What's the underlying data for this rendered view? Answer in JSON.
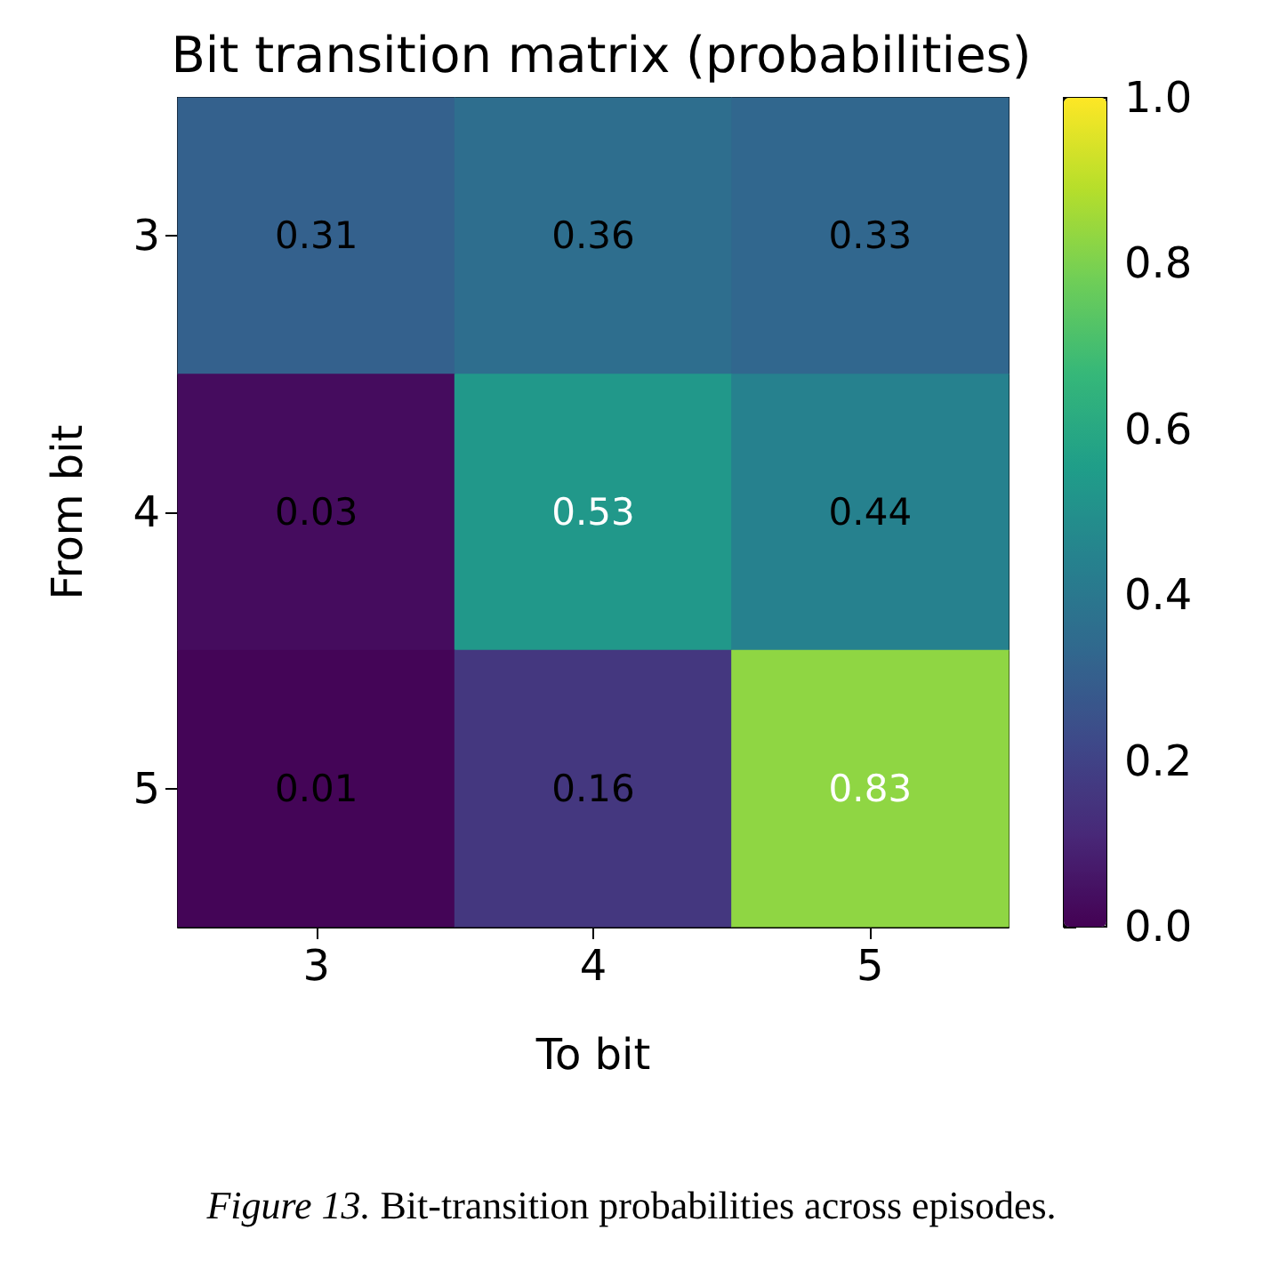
{
  "chart_data": {
    "type": "heatmap",
    "title": "Bit transition matrix (probabilities)",
    "xlabel": "To bit",
    "ylabel": "From bit",
    "categories": [
      "3",
      "4",
      "5"
    ],
    "y_categories": [
      "3",
      "4",
      "5"
    ],
    "cells": [
      [
        0.31,
        0.36,
        0.33
      ],
      [
        0.03,
        0.53,
        0.44
      ],
      [
        0.01,
        0.16,
        0.83
      ]
    ],
    "data_labels": true,
    "clim": [
      0,
      1
    ],
    "cticks": [
      {
        "value": 0,
        "label": "0.0"
      },
      {
        "value": 0.2,
        "label": "0.2"
      },
      {
        "value": 0.4,
        "label": "0.4"
      },
      {
        "value": 0.6,
        "label": "0.6"
      },
      {
        "value": 0.8,
        "label": "0.8"
      },
      {
        "value": 1,
        "label": "1.0"
      }
    ],
    "annotations": [
      "Figure 13. Bit-transition probabilities across episodes."
    ]
  }
}
